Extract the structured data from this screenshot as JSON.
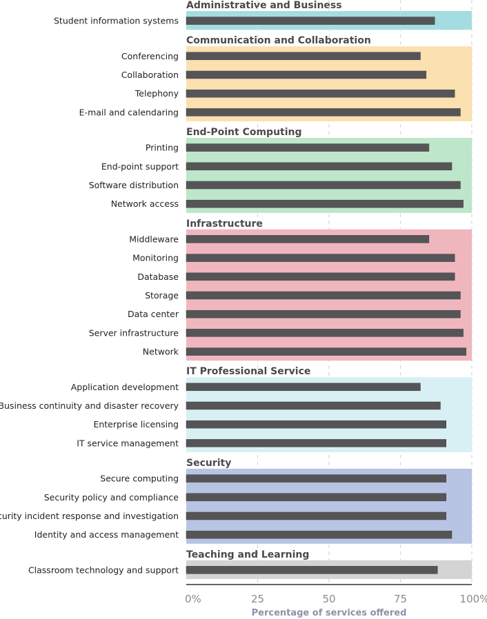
{
  "chart_data": {
    "type": "bar",
    "orientation": "horizontal",
    "xlabel": "Percentage of services offered",
    "xlim": [
      0,
      100
    ],
    "x_ticks": [
      "0%",
      "25",
      "50",
      "75",
      "100%"
    ],
    "grid": "vertical dashed",
    "bar_color": "#555557",
    "groups": [
      {
        "name": "Administrative and Business",
        "color": "#a3dde1",
        "items": [
          {
            "label": "Student information systems",
            "value": 87
          }
        ]
      },
      {
        "name": "Communication and Collaboration",
        "color": "#fbe0b0",
        "items": [
          {
            "label": "Conferencing",
            "value": 82
          },
          {
            "label": "Collaboration",
            "value": 84
          },
          {
            "label": "Telephony",
            "value": 94
          },
          {
            "label": "E-mail and calendaring",
            "value": 96
          }
        ]
      },
      {
        "name": "End-Point Computing",
        "color": "#bde6cb",
        "items": [
          {
            "label": "Printing",
            "value": 85
          },
          {
            "label": "End-point support",
            "value": 93
          },
          {
            "label": "Software distribution",
            "value": 96
          },
          {
            "label": "Network access",
            "value": 97
          }
        ]
      },
      {
        "name": "Infrastructure",
        "color": "#f0b6be",
        "items": [
          {
            "label": "Middleware",
            "value": 85
          },
          {
            "label": "Monitoring",
            "value": 94
          },
          {
            "label": "Database",
            "value": 94
          },
          {
            "label": "Storage",
            "value": 96
          },
          {
            "label": "Data center",
            "value": 96
          },
          {
            "label": "Server infrastructure",
            "value": 97
          },
          {
            "label": "Network",
            "value": 98
          }
        ]
      },
      {
        "name": "IT Professional Service",
        "color": "#d8f0f3",
        "items": [
          {
            "label": "Application development",
            "value": 82
          },
          {
            "label": "Business continuity and disaster recovery",
            "value": 89
          },
          {
            "label": "Enterprise licensing",
            "value": 91
          },
          {
            "label": "IT service management",
            "value": 91
          }
        ]
      },
      {
        "name": "Security",
        "color": "#b7c4e3",
        "items": [
          {
            "label": "Secure computing",
            "value": 91
          },
          {
            "label": "Security policy and compliance",
            "value": 91
          },
          {
            "label": "Security incident response and investigation",
            "value": 91
          },
          {
            "label": "Identity and access management",
            "value": 93
          }
        ]
      },
      {
        "name": "Teaching and Learning",
        "color": "#d4d4d4",
        "items": [
          {
            "label": "Classroom technology and support",
            "value": 88
          }
        ]
      }
    ]
  }
}
